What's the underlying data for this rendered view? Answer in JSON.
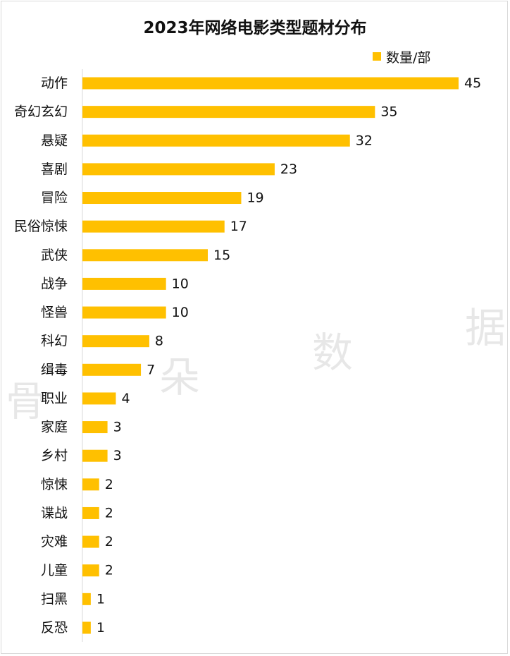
{
  "chart_data": {
    "type": "bar",
    "orientation": "horizontal",
    "title": "2023年网络电影类型题材分布",
    "categories": [
      "动作",
      "奇幻玄幻",
      "悬疑",
      "喜剧",
      "冒险",
      "民俗惊悚",
      "武侠",
      "战争",
      "怪兽",
      "科幻",
      "缉毒",
      "职业",
      "家庭",
      "乡村",
      "惊悚",
      "谍战",
      "灾难",
      "儿童",
      "扫黑",
      "反恐"
    ],
    "series": [
      {
        "name": "数量/部",
        "values": [
          45,
          35,
          32,
          23,
          19,
          17,
          15,
          10,
          10,
          8,
          7,
          4,
          3,
          3,
          2,
          2,
          2,
          2,
          1,
          1
        ]
      }
    ],
    "xlim": [
      0,
      45
    ],
    "grid": false,
    "legend_position": "top-right",
    "bar_color": "#FFC000"
  },
  "watermark": [
    "骨",
    "朵",
    "数",
    "据"
  ]
}
